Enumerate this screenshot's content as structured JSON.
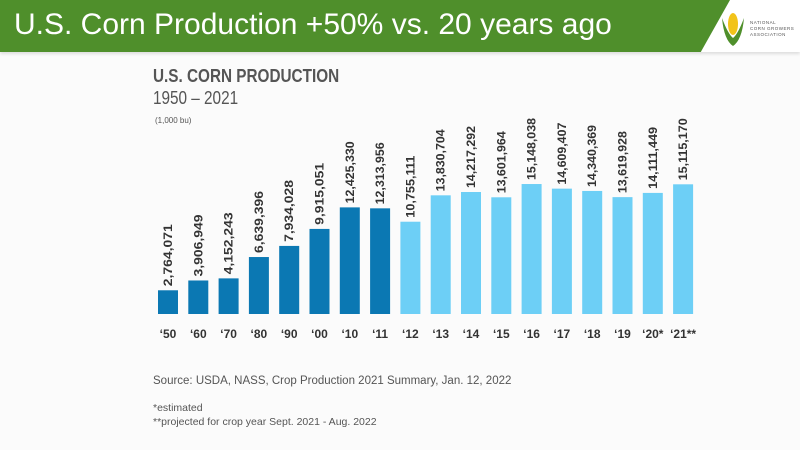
{
  "header": {
    "title": "U.S. Corn Production +50% vs. 20 years ago",
    "logo_text": [
      "NATIONAL",
      "CORN GROWERS",
      "ASSOCIATION"
    ]
  },
  "colors": {
    "header_green": "#4f8f2b",
    "historic_bar": "#0b78b3",
    "recent_bar": "#6dcff6"
  },
  "chart_data": {
    "type": "bar",
    "title": "U.S. CORN PRODUCTION",
    "subtitle": "1950 – 2021",
    "ylabel": "(1,000 bu)",
    "categories": [
      "‘50",
      "‘60",
      "‘70",
      "‘80",
      "‘90",
      "‘00",
      "‘10",
      "‘11",
      "‘12",
      "‘13",
      "‘14",
      "‘15",
      "‘16",
      "‘17",
      "‘18",
      "‘19",
      "‘20*",
      "‘21**"
    ],
    "values": [
      2764071,
      3906949,
      4152243,
      6639396,
      7934028,
      9915051,
      12425330,
      12313956,
      10755111,
      13830704,
      14217292,
      13601964,
      15148038,
      14609407,
      14340369,
      13619928,
      14111449,
      15115170
    ],
    "labels": [
      "2,764,071",
      "3,906,949",
      "4,152,243",
      "6,639,396",
      "7,934,028",
      "9,915,051",
      "12,425,330",
      "12,313,956",
      "10,755,111",
      "13,830,704",
      "14,217,292",
      "13,601,964",
      "15,148,038",
      "14,609,407",
      "14,340,369",
      "13,619,928",
      "14,111,449",
      "15,115,170"
    ],
    "highlight_from_index": 8,
    "ylim": [
      0,
      15500000
    ],
    "grid": false
  },
  "footer": {
    "source": "Source: USDA, NASS, Crop Production 2021 Summary, Jan. 12, 2022",
    "note1": "*estimated",
    "note2": "**projected for crop year Sept. 2021 - Aug. 2022"
  }
}
